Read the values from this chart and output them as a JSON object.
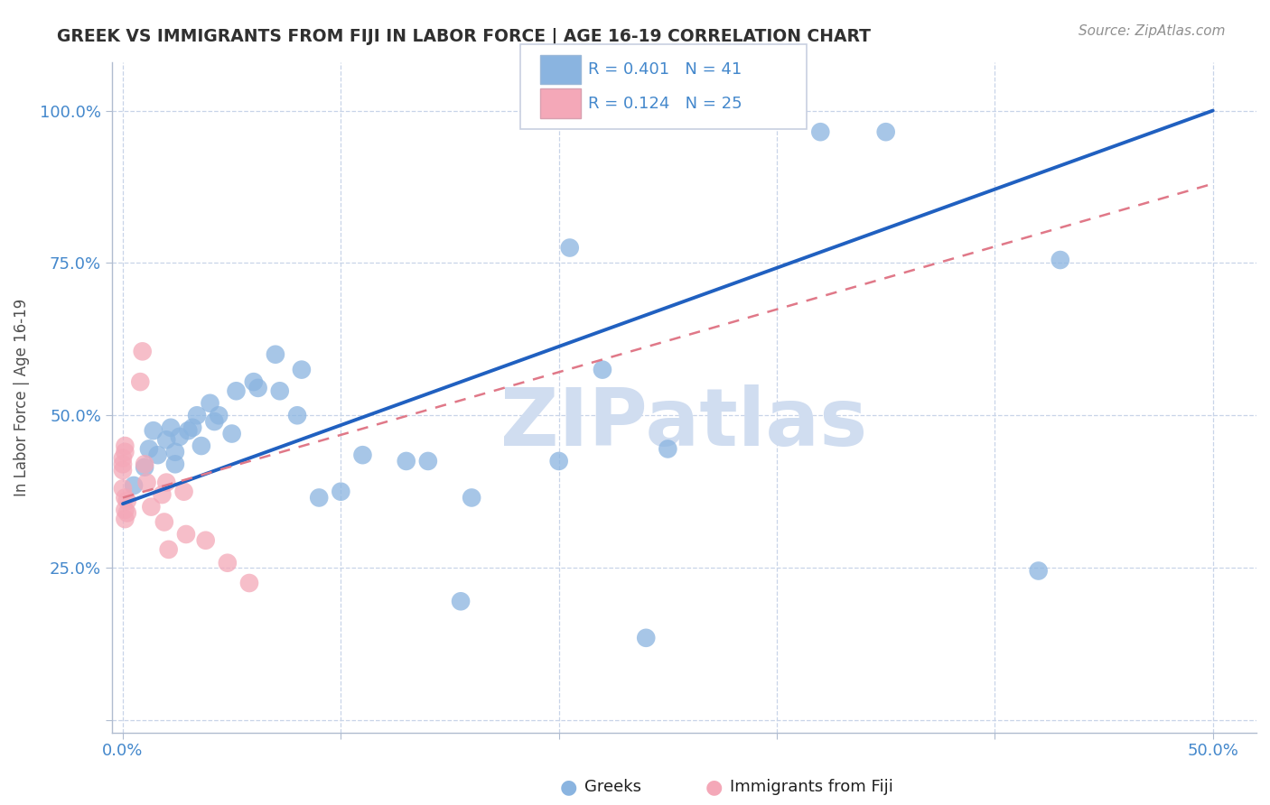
{
  "title": "GREEK VS IMMIGRANTS FROM FIJI IN LABOR FORCE | AGE 16-19 CORRELATION CHART",
  "source_text": "Source: ZipAtlas.com",
  "ylabel": "In Labor Force | Age 16-19",
  "xlim": [
    -0.005,
    0.52
  ],
  "ylim": [
    -0.02,
    1.08
  ],
  "xticks": [
    0.0,
    0.1,
    0.2,
    0.3,
    0.4,
    0.5
  ],
  "xticklabels": [
    "0.0%",
    "",
    "",
    "",
    "",
    "50.0%"
  ],
  "ytick_positions": [
    0.0,
    0.25,
    0.5,
    0.75,
    1.0
  ],
  "yticklabels": [
    "",
    "25.0%",
    "50.0%",
    "75.0%",
    "100.0%"
  ],
  "watermark": "ZIPatlas",
  "legend_r_blue": "R = 0.401",
  "legend_n_blue": "N = 41",
  "legend_r_pink": "R = 0.124",
  "legend_n_pink": "N = 25",
  "blue_color": "#8ab4e0",
  "pink_color": "#f4a8b8",
  "blue_line_color": "#2060c0",
  "pink_line_color": "#e07888",
  "title_color": "#303030",
  "tick_label_color": "#4488cc",
  "grid_color": "#c8d4e8",
  "watermark_color": "#d0ddf0",
  "greek_x": [
    0.005,
    0.01,
    0.012,
    0.014,
    0.016,
    0.02,
    0.022,
    0.024,
    0.024,
    0.026,
    0.03,
    0.032,
    0.034,
    0.036,
    0.04,
    0.042,
    0.044,
    0.05,
    0.052,
    0.06,
    0.062,
    0.07,
    0.072,
    0.08,
    0.082,
    0.09,
    0.1,
    0.11,
    0.13,
    0.14,
    0.155,
    0.16,
    0.2,
    0.205,
    0.22,
    0.24,
    0.25,
    0.32,
    0.35,
    0.42,
    0.43
  ],
  "greek_y": [
    0.385,
    0.415,
    0.445,
    0.475,
    0.435,
    0.46,
    0.48,
    0.44,
    0.42,
    0.465,
    0.475,
    0.48,
    0.5,
    0.45,
    0.52,
    0.49,
    0.5,
    0.47,
    0.54,
    0.555,
    0.545,
    0.6,
    0.54,
    0.5,
    0.575,
    0.365,
    0.375,
    0.435,
    0.425,
    0.425,
    0.195,
    0.365,
    0.425,
    0.775,
    0.575,
    0.135,
    0.445,
    0.965,
    0.965,
    0.245,
    0.755
  ],
  "fiji_x": [
    0.0,
    0.0,
    0.0,
    0.0,
    0.001,
    0.001,
    0.001,
    0.001,
    0.001,
    0.002,
    0.002,
    0.008,
    0.009,
    0.01,
    0.011,
    0.013,
    0.018,
    0.019,
    0.02,
    0.021,
    0.028,
    0.029,
    0.038,
    0.048,
    0.058
  ],
  "fiji_y": [
    0.42,
    0.43,
    0.41,
    0.38,
    0.365,
    0.345,
    0.33,
    0.44,
    0.45,
    0.34,
    0.36,
    0.555,
    0.605,
    0.42,
    0.39,
    0.35,
    0.37,
    0.325,
    0.39,
    0.28,
    0.375,
    0.305,
    0.295,
    0.258,
    0.225
  ],
  "blue_line_x0": 0.0,
  "blue_line_y0": 0.355,
  "blue_line_x1": 0.5,
  "blue_line_y1": 1.0,
  "pink_line_x0": 0.0,
  "pink_line_y0": 0.365,
  "pink_line_x1": 0.5,
  "pink_line_y1": 0.88
}
